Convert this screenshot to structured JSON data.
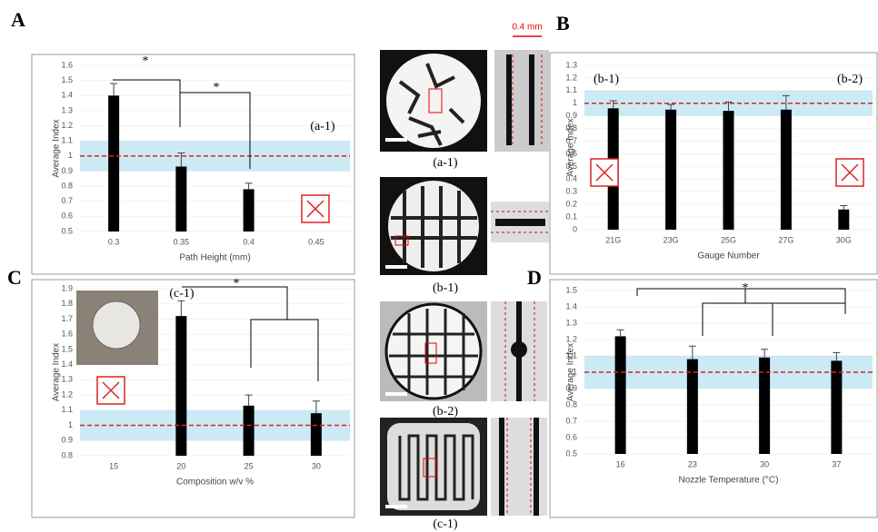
{
  "chart_data": [
    {
      "type": "bar",
      "ylabel": "Average Index",
      "xlabel": "Path Height (mm)",
      "categories": [
        "0.3",
        "0.35",
        "0.4",
        "0.45"
      ],
      "values": [
        1.4,
        0.93,
        0.78,
        null
      ],
      "errors": [
        0.08,
        0.09,
        0.04,
        null
      ],
      "ylim": [
        0.5,
        1.6
      ],
      "yticks": [
        0.5,
        0.6,
        0.7,
        0.8,
        0.9,
        1,
        1.1,
        1.2,
        1.3,
        1.4,
        1.5,
        1.6
      ],
      "band": [
        0.9,
        1.1
      ],
      "ref_line": 1,
      "color": "#000000",
      "grid": true,
      "annotations": [
        "(a-1)",
        "*",
        "*"
      ]
    },
    {
      "type": "bar",
      "ylabel": "Average Index",
      "xlabel": "Gauge Number",
      "categories": [
        "21G",
        "23G",
        "25G",
        "27G",
        "30G"
      ],
      "values": [
        0.96,
        0.95,
        0.94,
        0.95,
        0.16
      ],
      "errors": [
        0.06,
        0.04,
        0.07,
        0.11,
        0.03
      ],
      "ylim": [
        0,
        1.3
      ],
      "yticks": [
        0,
        0.1,
        0.2,
        0.3,
        0.4,
        0.5,
        0.6,
        0.7,
        0.8,
        0.9,
        1,
        1.1,
        1.2,
        1.3
      ],
      "band": [
        0.9,
        1.1
      ],
      "ref_line": 1,
      "color": "#000000",
      "grid": true,
      "annotations": [
        "(b-1)",
        "(b-2)"
      ]
    },
    {
      "type": "bar",
      "ylabel": "Average Index",
      "xlabel": "Composition w/v %",
      "categories": [
        "15",
        "20",
        "25",
        "30"
      ],
      "values": [
        null,
        1.72,
        1.13,
        1.08
      ],
      "errors": [
        null,
        0.1,
        0.07,
        0.08
      ],
      "ylim": [
        0.8,
        1.9
      ],
      "yticks": [
        0.8,
        0.9,
        1,
        1.1,
        1.2,
        1.3,
        1.4,
        1.5,
        1.6,
        1.7,
        1.8,
        1.9
      ],
      "band": [
        0.9,
        1.1
      ],
      "ref_line": 1,
      "color": "#000000",
      "grid": true,
      "annotations": [
        "(c-1)",
        "*"
      ]
    },
    {
      "type": "bar",
      "ylabel": "Average Index",
      "xlabel": "Nozzle Temperature (°C)",
      "categories": [
        "16",
        "23",
        "30",
        "37"
      ],
      "values": [
        1.22,
        1.08,
        1.09,
        1.07
      ],
      "errors": [
        0.04,
        0.08,
        0.05,
        0.05
      ],
      "ylim": [
        0.5,
        1.5
      ],
      "yticks": [
        0.5,
        0.6,
        0.7,
        0.8,
        0.9,
        1,
        1.1,
        1.2,
        1.3,
        1.4,
        1.5
      ],
      "band": [
        0.9,
        1.1
      ],
      "ref_line": 1,
      "color": "#000000",
      "grid": true,
      "annotations": [
        "*"
      ]
    }
  ],
  "figure": {
    "panel_labels": [
      "A",
      "B",
      "C",
      "D"
    ],
    "image_captions": [
      "(a-1)",
      "(b-1)",
      "(b-2)",
      "(c-1)"
    ],
    "scale_label": "0.4 mm"
  }
}
